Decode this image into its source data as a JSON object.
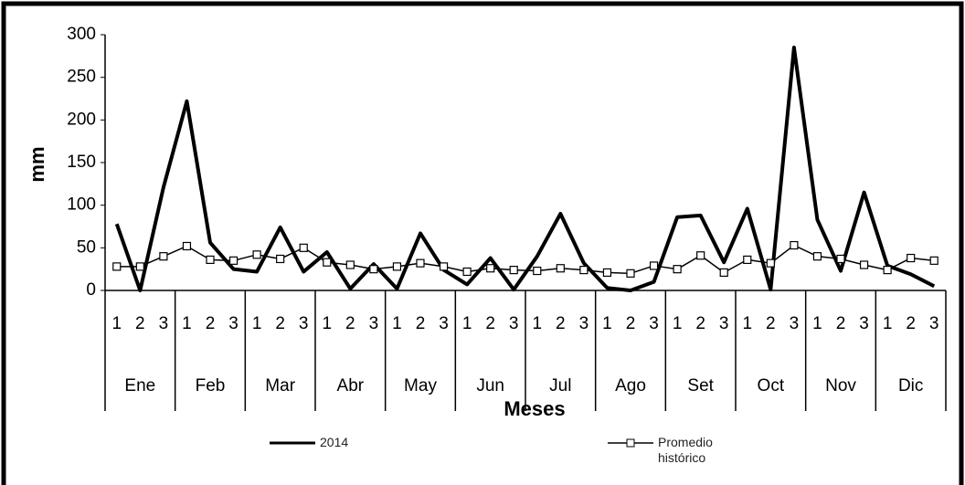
{
  "chart_data": {
    "type": "line",
    "y_label": "mm",
    "x_label": "Meses",
    "categories": [
      "1",
      "2",
      "3",
      "1",
      "2",
      "3",
      "1",
      "2",
      "3",
      "1",
      "2",
      "3",
      "1",
      "2",
      "3",
      "1",
      "2",
      "3",
      "1",
      "2",
      "3",
      "1",
      "2",
      "3",
      "1",
      "2",
      "3",
      "1",
      "2",
      "3",
      "1",
      "2",
      "3",
      "1",
      "2",
      "3"
    ],
    "groups": [
      "Ene",
      "Feb",
      "Mar",
      "Abr",
      "May",
      "Jun",
      "Jul",
      "Ago",
      "Set",
      "Oct",
      "Nov",
      "Dic"
    ],
    "series": [
      {
        "name": "2014",
        "color": "#000000",
        "marker": "none",
        "values": [
          78,
          0,
          121,
          222,
          56,
          25,
          22,
          74,
          22,
          45,
          2,
          31,
          2,
          67,
          24,
          7,
          38,
          1,
          40,
          90,
          32,
          3,
          0,
          10,
          86,
          88,
          33,
          96,
          1,
          285,
          83,
          23,
          115,
          29,
          19,
          5
        ]
      },
      {
        "name": "Promedio histórico",
        "color": "#000000",
        "marker": "square",
        "values": [
          28,
          28,
          40,
          52,
          36,
          35,
          42,
          37,
          50,
          33,
          30,
          25,
          28,
          32,
          28,
          22,
          26,
          24,
          23,
          26,
          24,
          21,
          20,
          29,
          25,
          41,
          21,
          36,
          32,
          53,
          40,
          37,
          30,
          24,
          38,
          35
        ]
      }
    ],
    "ylim": [
      0,
      300
    ],
    "yticks": [
      0,
      50,
      100,
      150,
      200,
      250,
      300
    ],
    "grid": false
  }
}
